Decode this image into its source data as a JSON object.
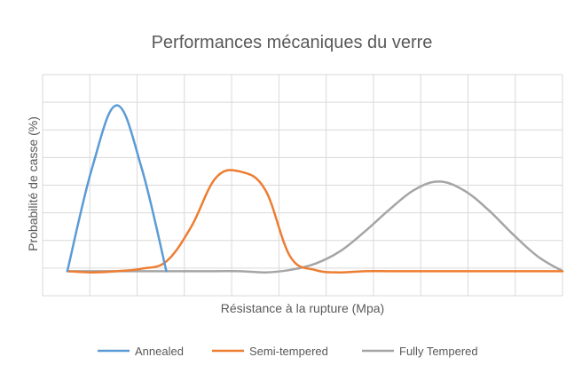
{
  "chart_data": {
    "type": "line",
    "title": "Performances mécaniques du verre",
    "xlabel": "Résistance à la rupture (Mpa)",
    "ylabel": "Probabilité de casse (%)",
    "xlim": [
      0,
      21
    ],
    "ylim": [
      -1,
      8
    ],
    "grid": true,
    "legend": "bottom",
    "series": [
      {
        "name": "Annealed",
        "color": "#5b9bd5",
        "x": [
          1,
          2,
          3,
          4,
          5
        ],
        "y": [
          0,
          4.2,
          6.75,
          4.2,
          0
        ]
      },
      {
        "name": "Semi-tempered",
        "color": "#ed7d31",
        "x": [
          1,
          2,
          3,
          4,
          5,
          6,
          7,
          8,
          9,
          10,
          11,
          12,
          13,
          14,
          15,
          16,
          17,
          18,
          19,
          20,
          21
        ],
        "y": [
          0,
          -0.05,
          0,
          0.1,
          0.4,
          1.8,
          3.8,
          4.05,
          3.3,
          0.6,
          0.05,
          -0.05,
          0,
          0,
          0,
          0,
          0,
          0,
          0,
          0,
          0
        ]
      },
      {
        "name": "Fully Tempered",
        "color": "#a5a5a5",
        "x": [
          1,
          2,
          3,
          4,
          5,
          6,
          7,
          8,
          9,
          10,
          11,
          12,
          13,
          14,
          15,
          16,
          17,
          18,
          19,
          20,
          21
        ],
        "y": [
          0,
          0,
          0,
          0,
          0,
          0,
          0,
          0,
          -0.05,
          0.05,
          0.3,
          0.8,
          1.6,
          2.5,
          3.3,
          3.65,
          3.3,
          2.5,
          1.5,
          0.6,
          0
        ]
      }
    ]
  }
}
